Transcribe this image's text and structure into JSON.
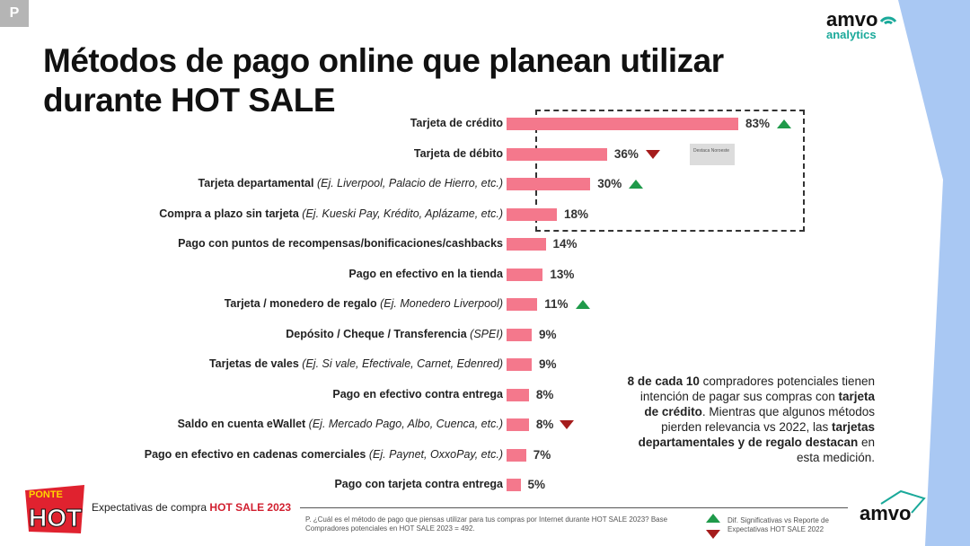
{
  "badge": "P",
  "title": "Métodos de pago online que planean utilizar durante HOT SALE",
  "logo": {
    "amvo": "amvo",
    "analytics": "analytics"
  },
  "note": "Destaca Noroeste",
  "chart_data": {
    "type": "bar",
    "orientation": "horizontal",
    "unit": "%",
    "bar_color": "#f4788c",
    "categories": [
      {
        "label": "Tarjeta de crédito",
        "example": "",
        "value": 83,
        "trend": "up"
      },
      {
        "label": "Tarjeta de débito",
        "example": "",
        "value": 36,
        "trend": "down"
      },
      {
        "label": "Tarjeta departamental",
        "example": "(Ej. Liverpool, Palacio de Hierro, etc.)",
        "value": 30,
        "trend": "up"
      },
      {
        "label": "Compra a plazo sin tarjeta",
        "example": "(Ej. Kueski Pay, Krédito, Aplázame, etc.)",
        "value": 18,
        "trend": ""
      },
      {
        "label": "Pago con puntos de recompensas/bonificaciones/cashbacks",
        "example": "",
        "value": 14,
        "trend": ""
      },
      {
        "label": "Pago en efectivo en la tienda",
        "example": "",
        "value": 13,
        "trend": ""
      },
      {
        "label": "Tarjeta / monedero de regalo",
        "example": "(Ej. Monedero Liverpool)",
        "value": 11,
        "trend": "up"
      },
      {
        "label": "Depósito / Cheque / Transferencia",
        "example": "(SPEI)",
        "value": 9,
        "trend": ""
      },
      {
        "label": "Tarjetas de vales",
        "example": "(Ej. Si vale, Efectivale, Carnet, Edenred)",
        "value": 9,
        "trend": ""
      },
      {
        "label": "Pago en efectivo contra entrega",
        "example": "",
        "value": 8,
        "trend": ""
      },
      {
        "label": "Saldo en cuenta eWallet",
        "example": "(Ej. Mercado Pago, Albo, Cuenca, etc.)",
        "value": 8,
        "trend": "down"
      },
      {
        "label": "Pago en efectivo en cadenas comerciales",
        "example": "(Ej. Paynet, OxxoPay, etc.)",
        "value": 7,
        "trend": ""
      },
      {
        "label": "Pago con tarjeta contra entrega",
        "example": "",
        "value": 5,
        "trend": ""
      }
    ]
  },
  "callout": {
    "p1": "8 de cada 10",
    "p2": " compradores potenciales tienen intención de pagar sus compras con ",
    "p3": "tarjeta de crédito",
    "p4": ". Mientras que algunos métodos pierden relevancia vs 2022, las ",
    "p5": "tarjetas departamentales y de regalo destacan",
    "p6": " en esta medición."
  },
  "footer": {
    "title_prefix": "Expectativas de compra ",
    "title_highlight": "HOT SALE 2023",
    "footnote": "P. ¿Cuál es el método de pago que piensas utilizar para tus compras por Internet durante HOT SALE 2023? Base Compradores potenciales en HOT SALE 2023 = 492.",
    "legend": "Dif. Significativas vs Reporte de Expectativas HOT SALE 2022",
    "hot_logo_top": "PONTE",
    "hot_logo_main": "HOT"
  }
}
